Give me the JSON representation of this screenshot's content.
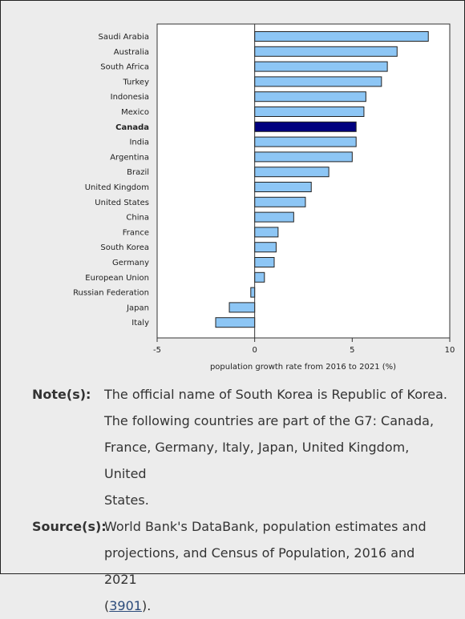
{
  "chart_data": {
    "type": "bar",
    "orientation": "horizontal",
    "categories": [
      "Saudi Arabia",
      "Australia",
      "South Africa",
      "Turkey",
      "Indonesia",
      "Mexico",
      "Canada",
      "India",
      "Argentina",
      "Brazil",
      "United Kingdom",
      "United States",
      "China",
      "France",
      "South Korea",
      "Germany",
      "European Union",
      "Russian Federation",
      "Japan",
      "Italy"
    ],
    "values": [
      8.9,
      7.3,
      6.8,
      6.5,
      5.7,
      5.6,
      5.2,
      5.2,
      5.0,
      3.8,
      2.9,
      2.6,
      2.0,
      1.2,
      1.1,
      1.0,
      0.5,
      -0.2,
      -1.3,
      -2.0
    ],
    "highlight": "Canada",
    "xlabel": "population growth rate from 2016 to 2021 (%)",
    "xlim": [
      -5,
      10
    ],
    "xticks": [
      -5,
      0,
      5,
      10
    ],
    "grid": false,
    "colors": {
      "bar": "#8dc6f5",
      "highlight": "#00007f",
      "outline": "#222222"
    }
  },
  "notes": {
    "notes_label": "Note(s):",
    "note_line1": "The official name of South Korea is Republic of Korea.",
    "note_line2": "The following countries are part of the G7: Canada,",
    "note_line3": "France, Germany, Italy, Japan, United Kingdom, United",
    "note_line4": "States.",
    "sources_label": "Source(s):",
    "source_line1": "World Bank's DataBank, population estimates and",
    "source_line2": "projections, and Census of Population, 2016 and 2021",
    "source_open": "(",
    "source_link": "3901",
    "source_close": ")."
  }
}
